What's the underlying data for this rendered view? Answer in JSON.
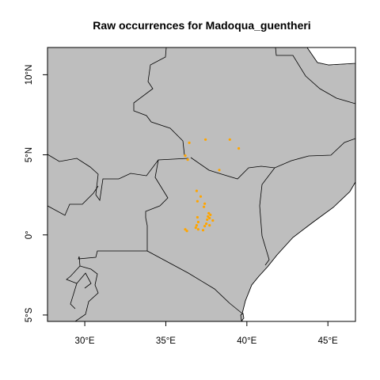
{
  "map": {
    "title": "Raw occurrences for Madoqua_guentheri",
    "colors": {
      "land": "#bebebe",
      "sea": "#ffffff",
      "border": "#000000",
      "points": "#ffa500"
    },
    "extent": {
      "lon": [
        27.7,
        46.7
      ],
      "lat": [
        -5.4,
        11.7
      ]
    },
    "x_ticks": [
      {
        "value": 30,
        "label": "30°E"
      },
      {
        "value": 35,
        "label": "35°E"
      },
      {
        "value": 40,
        "label": "40°E"
      },
      {
        "value": 45,
        "label": "45°E"
      }
    ],
    "y_ticks": [
      {
        "value": -5,
        "label": "5°S"
      },
      {
        "value": 0,
        "label": "0°"
      },
      {
        "value": 5,
        "label": "5°N"
      },
      {
        "value": 10,
        "label": "10°N"
      }
    ],
    "occurrences": [
      [
        36.45,
        5.75
      ],
      [
        37.45,
        5.95
      ],
      [
        38.95,
        5.95
      ],
      [
        39.5,
        5.4
      ],
      [
        38.3,
        4.05
      ],
      [
        36.2,
        4.95
      ],
      [
        36.35,
        4.7
      ],
      [
        36.9,
        2.75
      ],
      [
        37.15,
        2.4
      ],
      [
        36.95,
        2.1
      ],
      [
        37.4,
        1.95
      ],
      [
        37.35,
        1.75
      ],
      [
        37.65,
        1.35
      ],
      [
        37.6,
        1.15
      ],
      [
        37.75,
        1.25
      ],
      [
        37.7,
        1.05
      ],
      [
        37.55,
        0.95
      ],
      [
        36.95,
        1.1
      ],
      [
        37.0,
        0.8
      ],
      [
        37.5,
        0.7
      ],
      [
        37.7,
        0.6
      ],
      [
        37.4,
        0.55
      ],
      [
        36.9,
        0.6
      ],
      [
        36.85,
        0.45
      ],
      [
        37.0,
        0.35
      ],
      [
        36.2,
        0.35
      ],
      [
        36.3,
        0.25
      ],
      [
        37.3,
        0.3
      ],
      [
        37.9,
        0.9
      ]
    ]
  }
}
